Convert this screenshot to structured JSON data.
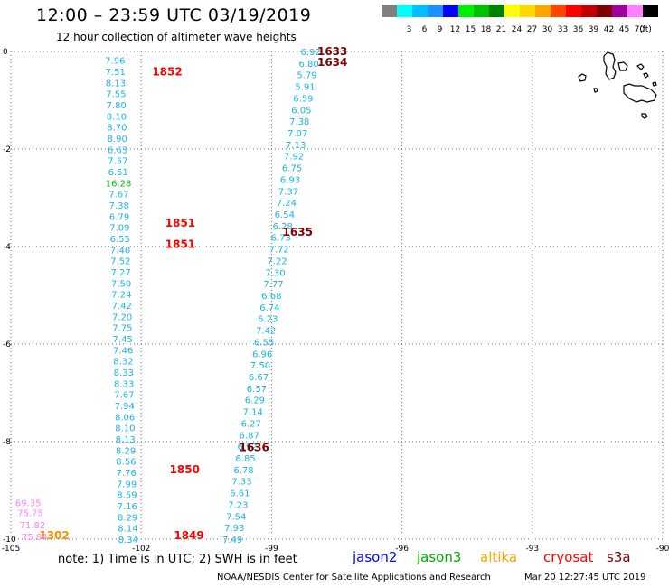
{
  "header": {
    "title": "12:00 – 23:59 UTC 03/19/2019",
    "subtitle": "12 hour collection of altimeter wave heights"
  },
  "legend": {
    "unit": "(ft)",
    "bins": [
      {
        "label": "",
        "color": "#808080"
      },
      {
        "label": "3",
        "color": "#00ffff"
      },
      {
        "label": "6",
        "color": "#00bfff"
      },
      {
        "label": "9",
        "color": "#1e90ff"
      },
      {
        "label": "12",
        "color": "#0000ff"
      },
      {
        "label": "15",
        "color": "#00ee00"
      },
      {
        "label": "18",
        "color": "#00c000"
      },
      {
        "label": "21",
        "color": "#008000"
      },
      {
        "label": "24",
        "color": "#ffff00"
      },
      {
        "label": "27",
        "color": "#ffd700"
      },
      {
        "label": "30",
        "color": "#ffa500"
      },
      {
        "label": "33",
        "color": "#ff4500"
      },
      {
        "label": "36",
        "color": "#ff0000"
      },
      {
        "label": "39",
        "color": "#c00000"
      },
      {
        "label": "42",
        "color": "#800000"
      },
      {
        "label": "45",
        "color": "#a000a0"
      },
      {
        "label": "70",
        "color": "#ff80ff"
      },
      {
        "label": "",
        "color": "#000000"
      }
    ]
  },
  "map": {
    "lon_range": [
      -105,
      -90
    ],
    "lat_range": [
      -10,
      0
    ],
    "x_ticks": [
      "-105",
      "-102",
      "-99",
      "-96",
      "-93",
      "-90"
    ],
    "y_ticks": [
      "0",
      "-2",
      "-4",
      "-6",
      "-8",
      "-10"
    ],
    "y_tick_values": [
      0,
      -2,
      -4,
      -6,
      -8,
      -10
    ],
    "x_tick_values": [
      -105,
      -102,
      -99,
      -96,
      -93,
      -90
    ],
    "passes": [
      {
        "satellite": "jason3",
        "start": [
          -102.6,
          -0.18
        ],
        "end": [
          -102.3,
          -10.0
        ],
        "values": [
          "7.96",
          "7.51",
          "8.13",
          "7.55",
          "7.80",
          "8.10",
          "8.70",
          "8.90",
          "6.63",
          "7.57",
          "6.51",
          "16.28",
          "7.67",
          "7.38",
          "6.79",
          "7.09",
          "6.55",
          "7.40",
          "7.52",
          "7.27",
          "7.50",
          "7.24",
          "7.42",
          "7.20",
          "7.75",
          "7.45",
          "7.46",
          "8.32",
          "8.33",
          "8.33",
          "7.67",
          "7.94",
          "8.06",
          "8.10",
          "8.13",
          "8.29",
          "8.56",
          "7.76",
          "7.99",
          "8.59",
          "7.16",
          "8.29",
          "8.14",
          "8.34"
        ],
        "value_colors": {
          "16.28": "#00c000"
        }
      },
      {
        "satellite": "jason3",
        "start": [
          -98.1,
          0.0
        ],
        "end": [
          -99.9,
          -10.0
        ],
        "values": [
          "6.92",
          "6.80",
          "5.79",
          "5.91",
          "6.59",
          "6.05",
          "7.38",
          "7.07",
          "7.13",
          "7.92",
          "6.75",
          "6.93",
          "7.37",
          "7.24",
          "6.54",
          "6.28",
          "6.73",
          "7.72",
          "7.22",
          "7.30",
          "7.77",
          "6.68",
          "6.74",
          "6.23",
          "7.42",
          "6.55",
          "6.96",
          "7.50",
          "6.67",
          "6.57",
          "6.29",
          "7.14",
          "6.27",
          "6.87",
          "6.92",
          "6.85",
          "6.78",
          "7.33",
          "6.61",
          "7.23",
          "7.54",
          "7.93",
          "7.49"
        ],
        "value_colors": {}
      }
    ],
    "time_labels": [
      {
        "text": "1633",
        "lon": -97.6,
        "lat": 0.0,
        "color": "#800000"
      },
      {
        "text": "1634",
        "lon": -97.6,
        "lat": -0.22,
        "color": "#800000"
      },
      {
        "text": "1852",
        "lon": -101.4,
        "lat": -0.42,
        "color": "#ff0000"
      },
      {
        "text": "1851",
        "lon": -101.1,
        "lat": -3.52,
        "color": "#ff0000"
      },
      {
        "text": "1851",
        "lon": -101.1,
        "lat": -3.95,
        "color": "#ff0000"
      },
      {
        "text": "1635",
        "lon": -98.4,
        "lat": -3.7,
        "color": "#800000"
      },
      {
        "text": "1636",
        "lon": -99.4,
        "lat": -8.12,
        "color": "#800000"
      },
      {
        "text": "1850",
        "lon": -101.0,
        "lat": -8.57,
        "color": "#ff0000"
      },
      {
        "text": "1849",
        "lon": -100.9,
        "lat": -9.93,
        "color": "#ff0000"
      },
      {
        "text": "1302",
        "lon": -104.0,
        "lat": -9.93,
        "color": "#ff8c00"
      }
    ],
    "left_values": [
      {
        "text": "69.35",
        "lon": -104.9,
        "lat": -9.25,
        "color": "#ff80ff"
      },
      {
        "text": "75.75",
        "lon": -104.85,
        "lat": -9.45,
        "color": "#ff80ff"
      },
      {
        "text": "71.82",
        "lon": -104.8,
        "lat": -9.7,
        "color": "#ff80ff"
      },
      {
        "text": "75.84",
        "lon": -104.75,
        "lat": -9.94,
        "color": "#ff80ff"
      }
    ]
  },
  "notes": {
    "text": "note:  1) Time is in UTC;  2) SWH is in feet"
  },
  "satellites": [
    {
      "name": "jason2",
      "color": "#0000ff"
    },
    {
      "name": "jason3",
      "color": "#00aa00"
    },
    {
      "name": "altika",
      "color": "#ffa500"
    },
    {
      "name": "cryosat",
      "color": "#ff0000"
    },
    {
      "name": "s3a",
      "color": "#800000"
    }
  ],
  "footer": {
    "credit": "NOAA/NESDIS Center for Satellite Applications and Research",
    "timestamp": "Mar 20 12:27:45 UTC 2019"
  }
}
